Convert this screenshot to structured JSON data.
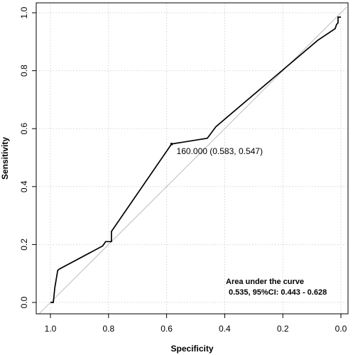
{
  "chart_data": {
    "type": "line",
    "title": "",
    "xlabel": "Specificity",
    "ylabel": "Sensitivity",
    "xlim": [
      1.0,
      0.0
    ],
    "ylim": [
      0.0,
      1.0
    ],
    "x_reversed": true,
    "grid": true,
    "x_ticks": [
      "1.0",
      "0.8",
      "0.6",
      "0.4",
      "0.2",
      "0.0"
    ],
    "y_ticks": [
      "0.0",
      "0.2",
      "0.4",
      "0.6",
      "0.8",
      "1.0"
    ],
    "series": [
      {
        "specificity": [
          1.0,
          0.99,
          0.985,
          0.975,
          0.97,
          0.82,
          0.81,
          0.79,
          0.79,
          0.583,
          0.46,
          0.43,
          0.08,
          0.02,
          0.015,
          0.01,
          0.01,
          0.0
        ],
        "sensitivity": [
          0.0,
          0.0,
          0.05,
          0.11,
          0.115,
          0.195,
          0.21,
          0.21,
          0.245,
          0.547,
          0.567,
          0.607,
          0.905,
          0.945,
          0.96,
          0.965,
          0.985,
          0.985
        ],
        "color": "#000000"
      }
    ],
    "reference_line": {
      "x": [
        1.0,
        0.0
      ],
      "y": [
        0.0,
        1.0
      ],
      "color": "#bdbdbd"
    },
    "threshold_point": {
      "specificity": 0.583,
      "sensitivity": 0.547,
      "label": "160.000 (0.583, 0.547)"
    },
    "auc_text": {
      "line1": "Area under the curve",
      "line2": "0.535, 95%CI: 0.443 - 0.628"
    }
  }
}
